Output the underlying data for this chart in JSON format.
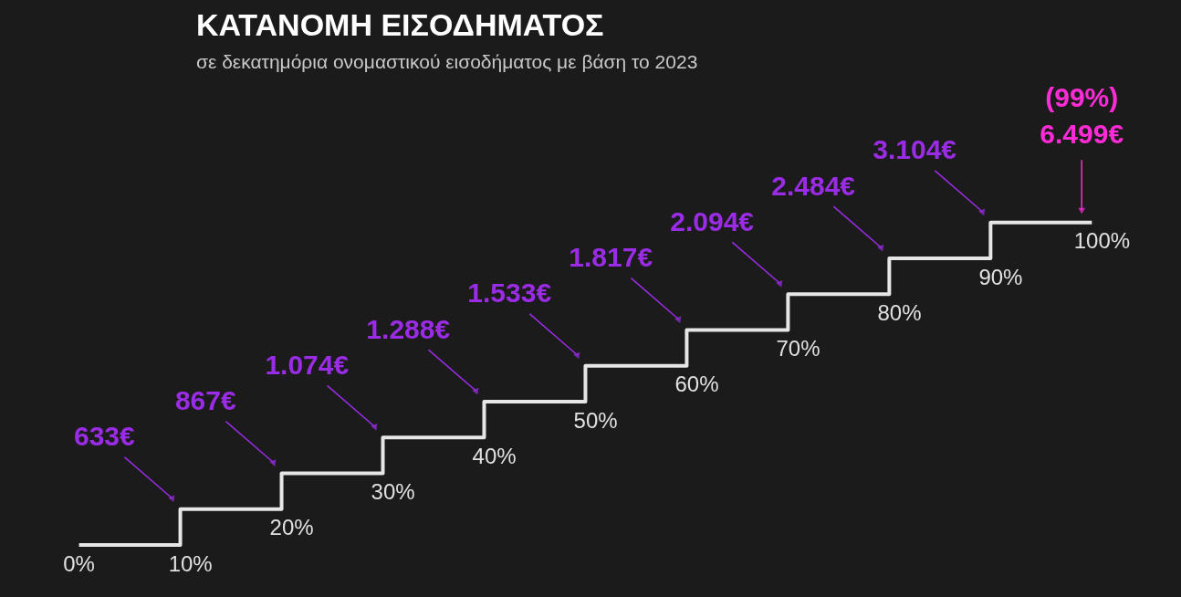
{
  "chart_data": {
    "type": "other",
    "title": "ΚΑΤΑΝΟΜΗ ΕΙΣΟΔΗΜΑΤΟΣ",
    "subtitle": "σε δεκατημόρια ονομαστικού εισοδήματος με βάση το 2023",
    "categories": [
      "0%",
      "10%",
      "20%",
      "30%",
      "40%",
      "50%",
      "60%",
      "70%",
      "80%",
      "90%",
      "100%"
    ],
    "values": [
      null,
      633,
      867,
      1074,
      1288,
      1533,
      1817,
      2094,
      2484,
      3104,
      6499
    ],
    "value_labels": [
      null,
      "633€",
      "867€",
      "1.074€",
      "1.288€",
      "1.533€",
      "1.817€",
      "2.094€",
      "2.484€",
      "3.104€",
      "6.499€"
    ],
    "colors": [
      null,
      "#9b2ce6",
      "#9b2ce6",
      "#9b2ce6",
      "#9b2ce6",
      "#9b2ce6",
      "#9b2ce6",
      "#9b2ce6",
      "#9b2ce6",
      "#9b2ce6",
      "#ff2bd6"
    ],
    "annotations": [
      "(99%)"
    ]
  }
}
